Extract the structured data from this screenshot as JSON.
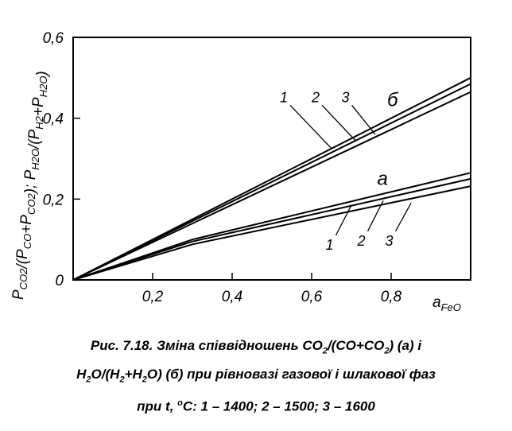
{
  "chart_data": {
    "type": "line",
    "xlabel": "a",
    "xlabel_sub": "FeO",
    "ylabel_parts": [
      {
        "t": "P"
      },
      {
        "t": "CO2",
        "sub": true
      },
      {
        "t": "/(P"
      },
      {
        "t": "CO",
        "sub": true
      },
      {
        "t": "+P"
      },
      {
        "t": "CO2",
        "sub": true
      },
      {
        "t": ");   P"
      },
      {
        "t": "H2O",
        "sub": true
      },
      {
        "t": "/(P"
      },
      {
        "t": "H2",
        "sub": true
      },
      {
        "t": "+P"
      },
      {
        "t": "H2O",
        "sub": true
      },
      {
        "t": ")"
      }
    ],
    "xlim": [
      0,
      1.0
    ],
    "ylim": [
      0,
      0.6
    ],
    "x_ticks": [
      {
        "value": 0.2,
        "label": "0,2"
      },
      {
        "value": 0.4,
        "label": "0,4"
      },
      {
        "value": 0.6,
        "label": "0,6"
      },
      {
        "value": 0.8,
        "label": "0,8"
      }
    ],
    "y_ticks": [
      {
        "value": 0,
        "label": "0"
      },
      {
        "value": 0.2,
        "label": "0,2"
      },
      {
        "value": 0.4,
        "label": "0,4"
      },
      {
        "value": 0.6,
        "label": "0,6"
      }
    ],
    "grid": false,
    "groups": [
      {
        "label": "б",
        "label_at": {
          "x": 0.79,
          "y": 0.43
        },
        "series": [
          {
            "name": "1",
            "x": [
              0,
              1.0
            ],
            "y": [
              0,
              0.5
            ],
            "annotation": {
              "x": 0.53,
              "y": 0.44,
              "arrow_to": [
                0.65,
                0.325
              ]
            }
          },
          {
            "name": "2",
            "x": [
              0,
              1.0
            ],
            "y": [
              0,
              0.485
            ],
            "annotation": {
              "x": 0.61,
              "y": 0.44,
              "arrow_to": [
                0.71,
                0.345
              ]
            }
          },
          {
            "name": "3",
            "x": [
              0,
              1.0
            ],
            "y": [
              0,
              0.465
            ],
            "annotation": {
              "x": 0.685,
              "y": 0.44,
              "arrow_to": [
                0.76,
                0.36
              ]
            }
          }
        ]
      },
      {
        "label": "а",
        "label_at": {
          "x": 0.765,
          "y": 0.235
        },
        "series": [
          {
            "name": "1",
            "x": [
              0,
              0.3,
              1.0
            ],
            "y": [
              0,
              0.1,
              0.265
            ],
            "annotation": {
              "x": 0.645,
              "y": 0.075,
              "arrow_to": [
                0.7,
                0.185
              ]
            }
          },
          {
            "name": "2",
            "x": [
              0,
              0.3,
              1.0
            ],
            "y": [
              0,
              0.095,
              0.25
            ],
            "annotation": {
              "x": 0.725,
              "y": 0.085,
              "arrow_to": [
                0.78,
                0.196
              ]
            }
          },
          {
            "name": "3",
            "x": [
              0,
              0.3,
              1.0
            ],
            "y": [
              0,
              0.088,
              0.232
            ],
            "annotation": {
              "x": 0.795,
              "y": 0.085,
              "arrow_to": [
                0.85,
                0.19
              ]
            }
          }
        ]
      }
    ]
  },
  "caption": {
    "lines": [
      [
        {
          "t": "Рис. 7.18. Зміна співвідношень CO"
        },
        {
          "t": "2",
          "sub": true
        },
        {
          "t": "/(CO+CO"
        },
        {
          "t": "2",
          "sub": true
        },
        {
          "t": ")  (а) і"
        }
      ],
      [
        {
          "t": "H"
        },
        {
          "t": "2",
          "sub": true
        },
        {
          "t": "O/(H"
        },
        {
          "t": "2",
          "sub": true
        },
        {
          "t": "+H"
        },
        {
          "t": "2",
          "sub": true
        },
        {
          "t": "O) (б) при рівновазі газової і шлакової фаз"
        }
      ],
      [
        {
          "t": "при t, "
        },
        {
          "t": "o",
          "sup": true
        },
        {
          "t": "C: 1 – 1400; 2 – 1500; 3 – 1600"
        }
      ]
    ]
  }
}
